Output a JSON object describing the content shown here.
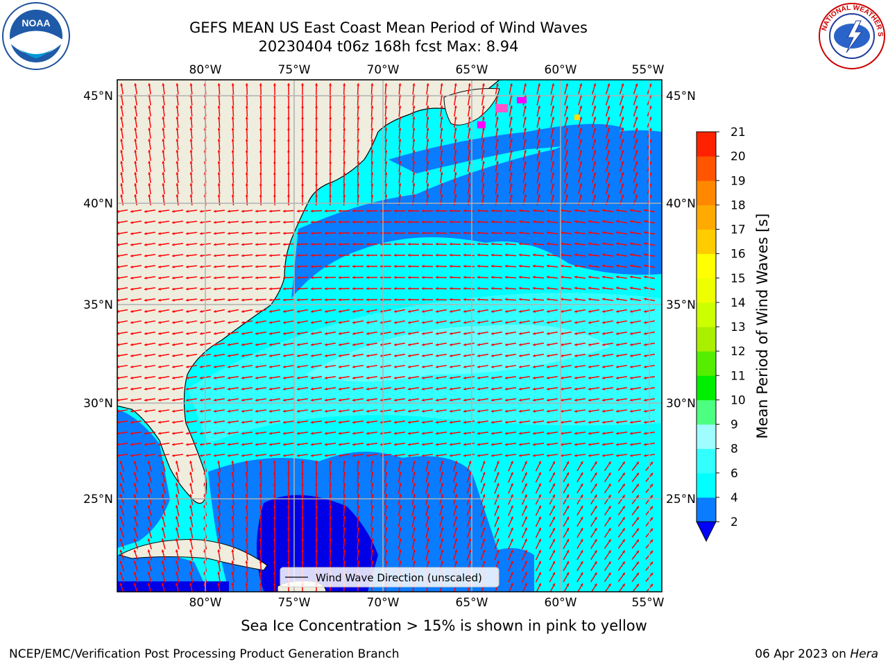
{
  "header": {
    "title_line1": "GEFS MEAN US East Coast Mean Period of Wind Waves",
    "title_line2": "20230404 t06z 168h fcst   Max: 8.94"
  },
  "logos": {
    "left": "noaa-logo",
    "right": "national-weather-service-logo",
    "left_text": "NOAA",
    "right_text": "NATIONAL WEATHER SERVICE"
  },
  "map": {
    "lon_labels": [
      "80°W",
      "75°W",
      "70°W",
      "65°W",
      "60°W",
      "55°W"
    ],
    "lat_labels": [
      "45°N",
      "40°N",
      "35°N",
      "30°N",
      "25°N"
    ],
    "legend_label": "Wind Wave Direction (unscaled)",
    "colors": {
      "land": "#eeedde",
      "arrow": "#ff0000",
      "grid": "#b0b0b0"
    }
  },
  "colorbar": {
    "label": "Mean Period of Wind Waves [s]",
    "ticks": [
      "2",
      "4",
      "6",
      "8",
      "9",
      "10",
      "11",
      "12",
      "13",
      "14",
      "15",
      "16",
      "17",
      "18",
      "19",
      "20",
      "21"
    ],
    "under_color": "#0000ff",
    "segment_colors": [
      "#0a7cff",
      "#00ffff",
      "#33ffff",
      "#9ffcff",
      "#4dff80",
      "#00ee00",
      "#55ee00",
      "#aaee00",
      "#ccff00",
      "#eeff00",
      "#ffff00",
      "#ffcc00",
      "#ffaa00",
      "#ff8800",
      "#ff5500",
      "#ff2200"
    ]
  },
  "footer": {
    "ice_note": "Sea Ice Concentration > 15% is shown in pink to yellow",
    "branch": "NCEP/EMC/Verification Post Processing Product Generation Branch",
    "date": "06 Apr 2023 on",
    "host": "Hera"
  }
}
